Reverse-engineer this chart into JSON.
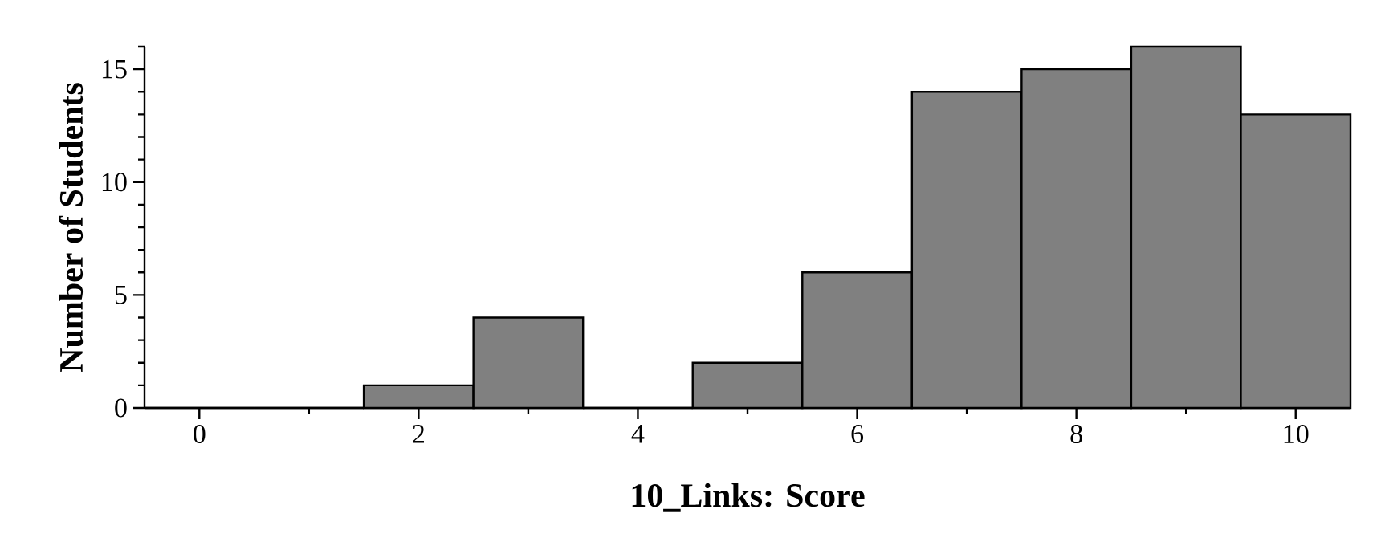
{
  "chart_data": {
    "type": "histogram",
    "xlabel": "10_Links: Score",
    "ylabel": "Number of Students",
    "bins": [
      -0.5,
      0.5,
      1.5,
      2.5,
      3.5,
      4.5,
      5.5,
      6.5,
      7.5,
      8.5,
      9.5,
      10.5
    ],
    "values": [
      0,
      0,
      1,
      4,
      0,
      2,
      6,
      14,
      15,
      16,
      13
    ],
    "color": "#808080",
    "xlim": [
      -0.5,
      10.5
    ],
    "ylim": [
      0,
      16
    ],
    "xticks": [
      0,
      {
        "value": 1,
        "label": null
      },
      2,
      {
        "value": 3,
        "label": null
      },
      4,
      {
        "value": 5,
        "label": null
      },
      6,
      {
        "value": 7,
        "label": null
      },
      8,
      {
        "value": 9,
        "label": null
      },
      10
    ],
    "yticks": [
      0,
      {
        "value": 1,
        "label": null
      },
      {
        "value": 2,
        "label": null
      },
      {
        "value": 3,
        "label": null
      },
      {
        "value": 4,
        "label": null
      },
      5,
      {
        "value": 6,
        "label": null
      },
      {
        "value": 7,
        "label": null
      },
      {
        "value": 8,
        "label": null
      },
      {
        "value": 9,
        "label": null
      },
      10,
      {
        "value": 11,
        "label": null
      },
      {
        "value": 12,
        "label": null
      },
      {
        "value": 13,
        "label": null
      },
      {
        "value": 14,
        "label": null
      },
      15,
      {
        "value": 16,
        "label": null
      }
    ],
    "grid": false
  }
}
